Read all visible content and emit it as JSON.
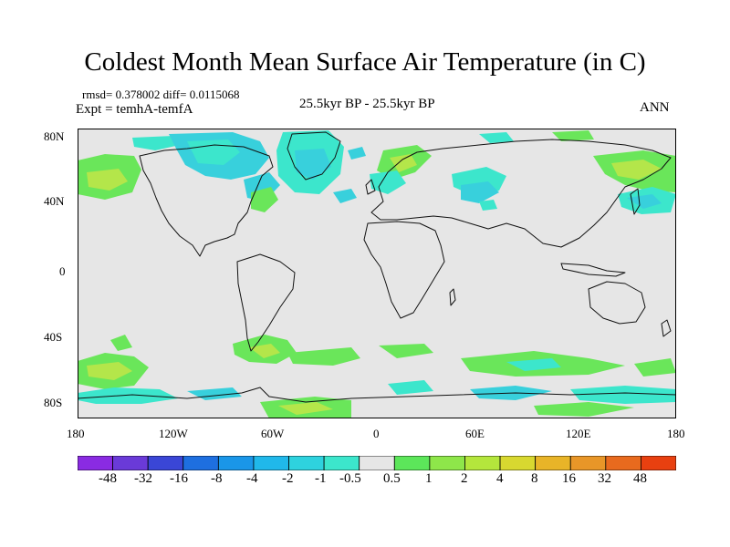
{
  "title": "Coldest Month Mean Surface Air Temperature (in C)",
  "stats_line": "rmsd= 0.378002 diff= 0.0115068",
  "experiment": "Expt = temhA-temfA",
  "period": "25.5kyr BP - 25.5kyr BP",
  "season": "ANN",
  "lat_labels": [
    "80N",
    "40N",
    "0",
    "40S",
    "80S"
  ],
  "lon_labels": [
    "180",
    "120W",
    "60W",
    "0",
    "60E",
    "120E",
    "180"
  ],
  "colors": {
    "neutral": "#e6e6e6",
    "cyan_light": "#3ce6cc",
    "cyan": "#38d0dc",
    "green": "#6ae65a",
    "yellow_green": "#b4e64a",
    "coast": "#111111"
  },
  "colorbar": {
    "swatches": [
      "#8a2be2",
      "#6a3ad8",
      "#3a46d6",
      "#1e6fe0",
      "#1a96e8",
      "#20b8ea",
      "#2ed2de",
      "#3ce6cc",
      "#e6e6e6",
      "#5ce65a",
      "#8ee64a",
      "#b4e63c",
      "#d8d830",
      "#e8b428",
      "#e89628",
      "#e86a1e",
      "#e84010"
    ],
    "labels": [
      "-48",
      "-32",
      "-16",
      "-8",
      "-4",
      "-2",
      "-1",
      "-0.5",
      "0.5",
      "1",
      "2",
      "4",
      "8",
      "16",
      "32",
      "48"
    ]
  }
}
